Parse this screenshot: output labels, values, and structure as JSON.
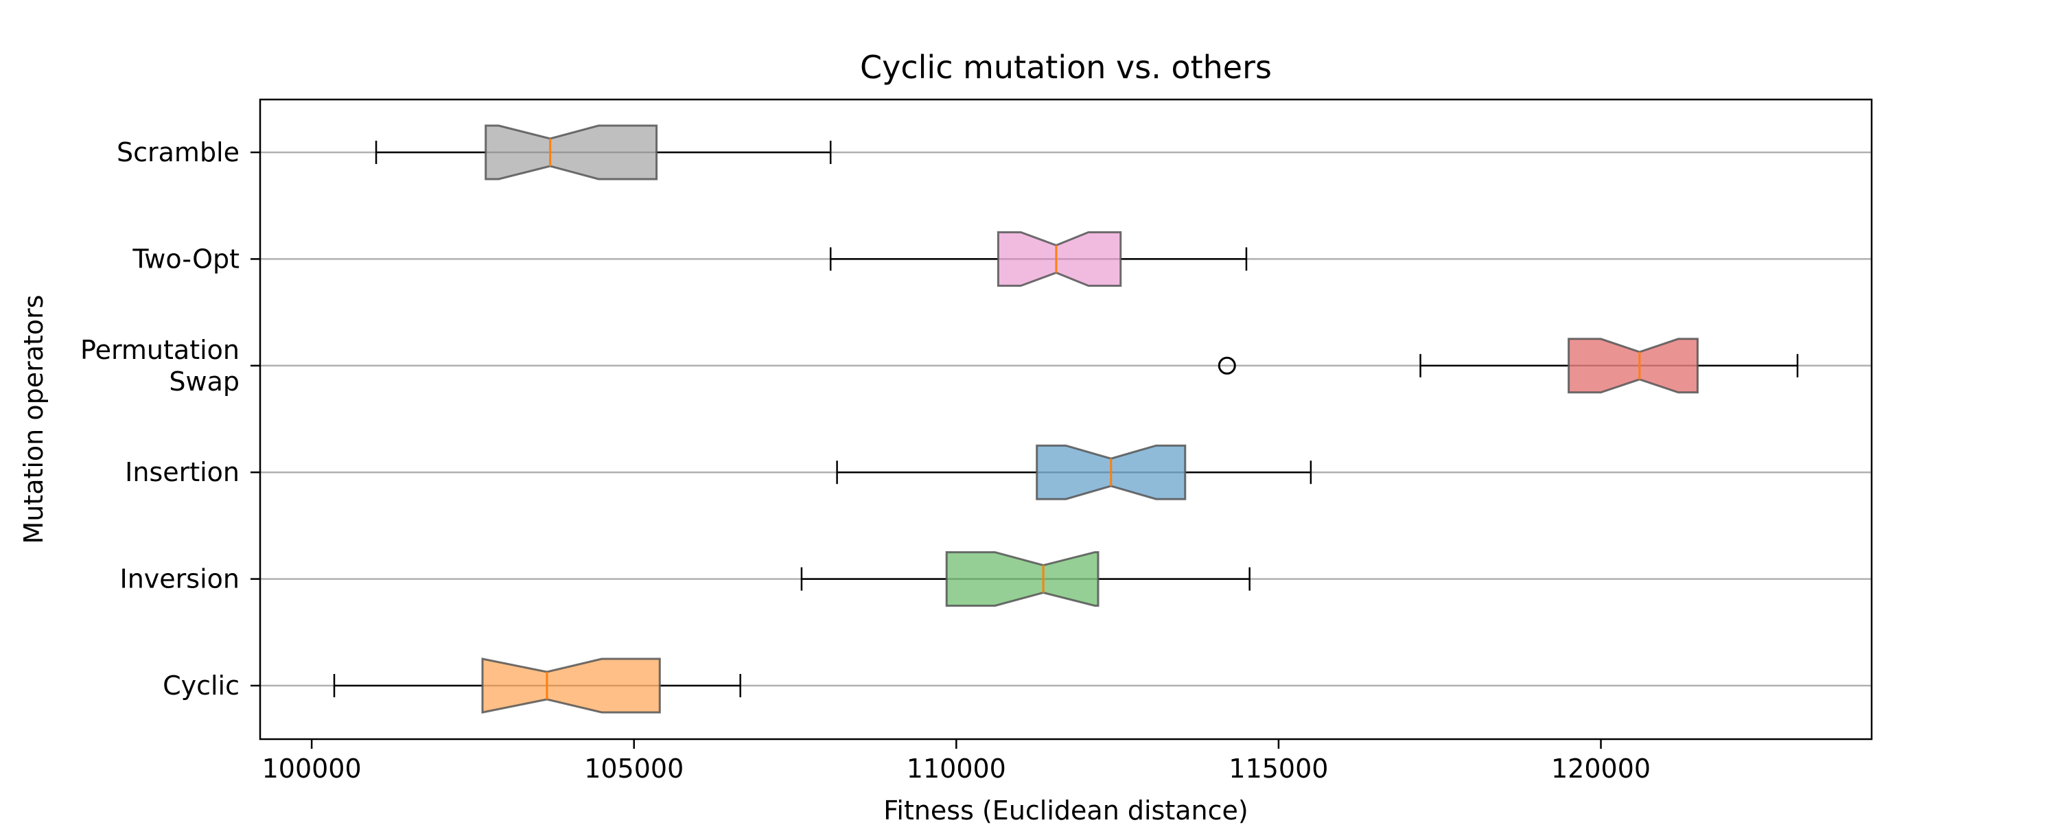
{
  "chart_data": {
    "type": "boxplot",
    "orientation": "horizontal",
    "notched": true,
    "title": "Cyclic mutation vs. others",
    "xlabel": "Fitness (Euclidean distance)",
    "ylabel": "Mutation operators",
    "xlim": [
      99200,
      124200
    ],
    "xticks": [
      100000,
      105000,
      110000,
      115000,
      120000
    ],
    "xtick_labels": [
      "100000",
      "105000",
      "110000",
      "115000",
      "120000"
    ],
    "grid": "horizontal",
    "median_color": "#ff7f0e",
    "categories": [
      {
        "label": [
          "Cyclic"
        ],
        "color": "#ff7f0e",
        "whisker_low": 100350,
        "q1": 102650,
        "notch_low": 102650,
        "median": 103650,
        "notch_high": 104500,
        "q3": 105400,
        "whisker_high": 106650,
        "outliers": []
      },
      {
        "label": [
          "Inversion"
        ],
        "color": "#2ca02c",
        "whisker_low": 107600,
        "q1": 109850,
        "notch_low": 110600,
        "median": 111350,
        "notch_high": 112150,
        "q3": 112200,
        "whisker_high": 114550,
        "outliers": []
      },
      {
        "label": [
          "Insertion"
        ],
        "color": "#1f77b4",
        "whisker_low": 108150,
        "q1": 111250,
        "notch_low": 111700,
        "median": 112400,
        "notch_high": 113100,
        "q3": 113550,
        "whisker_high": 115500,
        "outliers": []
      },
      {
        "label": [
          "Permutation",
          "Swap"
        ],
        "color": "#d62728",
        "whisker_low": 117200,
        "q1": 119500,
        "notch_low": 120000,
        "median": 120600,
        "notch_high": 121200,
        "q3": 121500,
        "whisker_high": 123050,
        "outliers": [
          114200
        ]
      },
      {
        "label": [
          "Two-Opt"
        ],
        "color": "#e377c2",
        "whisker_low": 108050,
        "q1": 110650,
        "notch_low": 111000,
        "median": 111550,
        "notch_high": 112050,
        "q3": 112550,
        "whisker_high": 114500,
        "outliers": []
      },
      {
        "label": [
          "Scramble"
        ],
        "color": "#7f7f7f",
        "whisker_low": 101000,
        "q1": 102700,
        "notch_low": 102900,
        "median": 103700,
        "notch_high": 104450,
        "q3": 105350,
        "whisker_high": 108050,
        "outliers": []
      }
    ]
  }
}
